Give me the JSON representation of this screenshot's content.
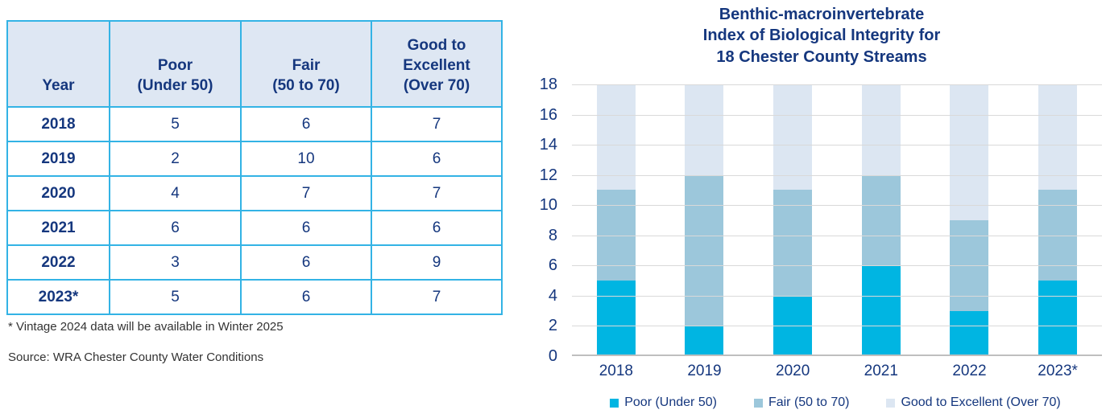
{
  "colors": {
    "navy_text": "#15377E",
    "table_border": "#33B3E5",
    "table_header_bg": "#DEE7F3",
    "gridline": "#D9D9D9",
    "axis_line": "#BFBFBF",
    "footnote_text": "#333333"
  },
  "table": {
    "headers": [
      "Year",
      "Poor\n(Under 50)",
      "Fair\n(50 to 70)",
      "Good to\nExcellent\n(Over 70)"
    ],
    "rows": [
      {
        "year": "2018",
        "poor": "5",
        "fair": "6",
        "good": "7"
      },
      {
        "year": "2019",
        "poor": "2",
        "fair": "10",
        "good": "6"
      },
      {
        "year": "2020",
        "poor": "4",
        "fair": "7",
        "good": "7"
      },
      {
        "year": "2021",
        "poor": "6",
        "fair": "6",
        "good": "6"
      },
      {
        "year": "2022",
        "poor": "3",
        "fair": "6",
        "good": "9"
      },
      {
        "year": "2023*",
        "poor": "5",
        "fair": "6",
        "good": "7"
      }
    ],
    "footnote": "* Vintage 2024 data will be available in Winter 2025",
    "source": "Source: WRA Chester County Water Conditions"
  },
  "chart_data": {
    "type": "bar",
    "stacked": true,
    "title": "Benthic-macroinvertebrate\nIndex of Biological Integrity for\n18 Chester County Streams",
    "categories": [
      "2018",
      "2019",
      "2020",
      "2021",
      "2022",
      "2023*"
    ],
    "series": [
      {
        "key": "poor",
        "name": "Poor (Under 50)",
        "color": "#00B5E2",
        "values": [
          5,
          2,
          4,
          6,
          3,
          5
        ]
      },
      {
        "key": "fair",
        "name": "Fair (50 to 70)",
        "color": "#9CC7DB",
        "values": [
          6,
          10,
          7,
          6,
          6,
          6
        ]
      },
      {
        "key": "good",
        "name": "Good to Excellent (Over 70)",
        "color": "#DCE6F2",
        "values": [
          7,
          6,
          7,
          6,
          9,
          7
        ]
      }
    ],
    "ylim": [
      0,
      18
    ],
    "ytick_step": 2,
    "grid": true,
    "legend_position": "bottom"
  }
}
